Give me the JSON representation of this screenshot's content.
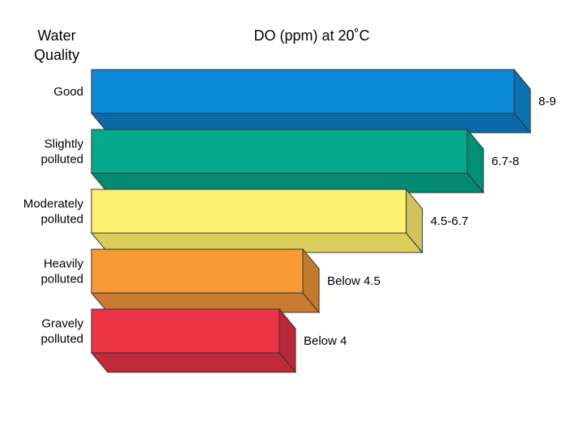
{
  "header": {
    "quality_line1": "Water",
    "quality_line2": "Quality",
    "do_title": "DO (ppm) at 20˚C"
  },
  "chart_data": {
    "type": "bar",
    "orientation": "horizontal",
    "style": "3d",
    "categories": [
      [
        "Good"
      ],
      [
        "Slightly",
        "polluted"
      ],
      [
        "Moderately",
        "polluted"
      ],
      [
        "Heavily",
        "polluted"
      ],
      [
        "Gravely",
        "polluted"
      ]
    ],
    "value_labels": [
      "8-9",
      "6.7-8",
      "4.5-6.7",
      "Below 4.5",
      "Below 4"
    ],
    "values": [
      9,
      8,
      6.7,
      4.5,
      4
    ],
    "xlim": [
      0,
      9
    ],
    "colors": [
      {
        "front": "#0a8ad6",
        "top": "#1f9ae0",
        "bottom": "#0a6aa8",
        "side": "#0a72b0"
      },
      {
        "front": "#06a88c",
        "top": "#12b598",
        "bottom": "#058a72",
        "side": "#058e76"
      },
      {
        "front": "#fdf26f",
        "top": "#fbf48a",
        "bottom": "#d9ce5c",
        "side": "#cfc45c"
      },
      {
        "front": "#f79a36",
        "top": "#f8a648",
        "bottom": "#c87a30",
        "side": "#c47a2e"
      },
      {
        "front": "#ea3344",
        "top": "#ee4656",
        "bottom": "#c02a3a",
        "side": "#b8283a"
      }
    ],
    "grid": false,
    "legend": "none"
  }
}
